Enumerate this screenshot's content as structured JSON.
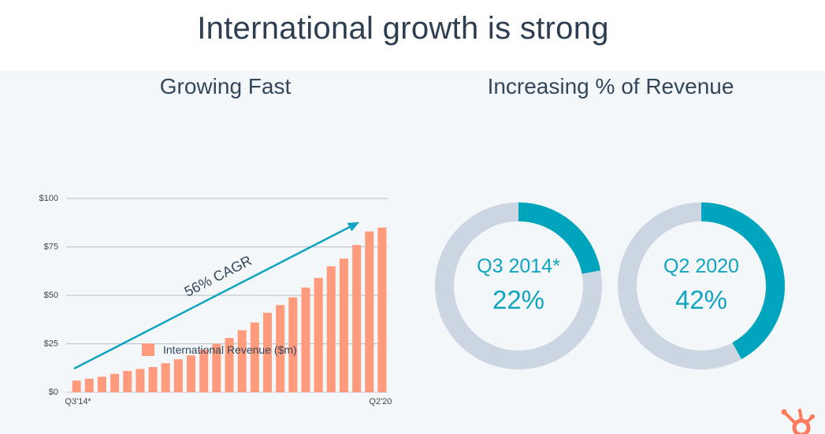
{
  "slide": {
    "title": "International growth is strong"
  },
  "left_panel": {
    "title": "Growing Fast",
    "annotation": "56% CAGR"
  },
  "right_panel": {
    "title": "Increasing % of Revenue"
  },
  "colors": {
    "bar": "#ff9a7c",
    "arrow": "#0fa4bf",
    "donut_fill": "#00a4bd",
    "donut_track": "#cbd6e2",
    "text_dark": "#33475b",
    "brand_logo": "#ff7a59"
  },
  "chart_data": [
    {
      "type": "bar",
      "title": "Growing Fast",
      "ylim": [
        0,
        100
      ],
      "yticks": [
        0,
        25,
        50,
        75,
        100
      ],
      "ytick_labels": [
        "$0",
        "$25",
        "$50",
        "$75",
        "$100"
      ],
      "x_first_label": "Q3'14*",
      "x_last_label": "Q2'20",
      "legend": [
        "International Revenue ($m)"
      ],
      "legend_position": "bottom",
      "grid": true,
      "series": [
        {
          "name": "International Revenue ($m)",
          "values": [
            6,
            7,
            8,
            9.5,
            11,
            12,
            13,
            15,
            17,
            19,
            22,
            25,
            28,
            32,
            36,
            41,
            45,
            49,
            54,
            59,
            65,
            69,
            76,
            83,
            85
          ]
        }
      ]
    },
    {
      "type": "pie",
      "subtype": "donut",
      "label": "Q3 2014*",
      "value_label": "22%",
      "value": 22
    },
    {
      "type": "pie",
      "subtype": "donut",
      "label": "Q2 2020",
      "value_label": "42%",
      "value": 42
    }
  ]
}
